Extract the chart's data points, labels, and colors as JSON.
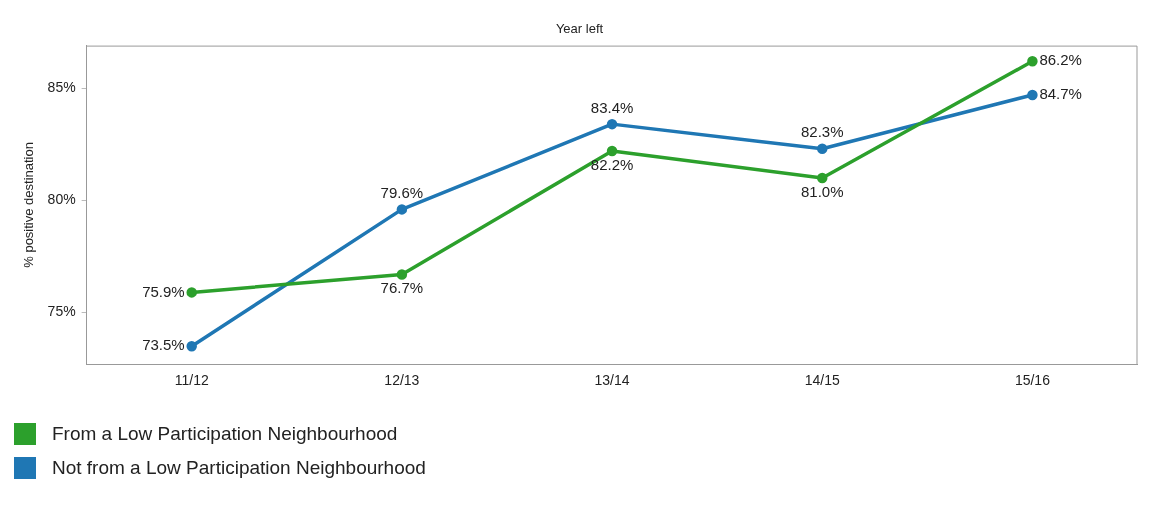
{
  "chart_data": {
    "type": "line",
    "xlabel": "Year left",
    "ylabel": "% positive destination",
    "categories": [
      "11/12",
      "12/13",
      "13/14",
      "14/15",
      "15/16"
    ],
    "series": [
      {
        "name": "From a Low Participation Neighbourhood",
        "color": "#2ca02c",
        "values": [
          75.9,
          76.7,
          82.2,
          81.0,
          86.2
        ],
        "value_labels": [
          "75.9%",
          "76.7%",
          "82.2%",
          "81.0%",
          "86.2%"
        ]
      },
      {
        "name": "Not from a Low Participation Neighbourhood",
        "color": "#1f77b4",
        "values": [
          73.5,
          79.6,
          83.4,
          82.3,
          84.7
        ],
        "value_labels": [
          "73.5%",
          "79.6%",
          "83.4%",
          "82.3%",
          "84.7%"
        ]
      }
    ],
    "ylim": [
      72.7,
      86.9
    ],
    "yticks": [
      {
        "value": 75,
        "label": "75%"
      },
      {
        "value": 80,
        "label": "80%"
      },
      {
        "value": 85,
        "label": "85%"
      }
    ],
    "grid": false,
    "legend": "bottom left",
    "marker": "circle",
    "line_style": "solid"
  }
}
